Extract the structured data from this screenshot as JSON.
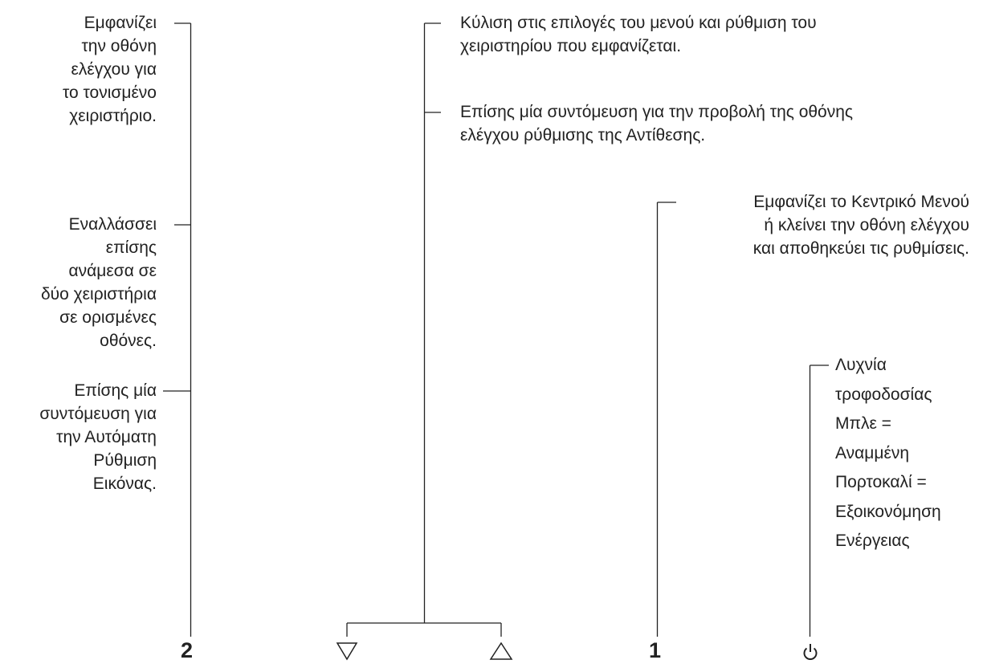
{
  "callouts": {
    "button2_show_control": [
      "Εμφανίζει",
      "την οθόνη",
      "ελέγχου για",
      "το τονισμένο",
      "χειριστήριο."
    ],
    "button2_toggle": [
      "Εναλλάσσει",
      "επίσης",
      "ανάμεσα σε",
      "δύο χειριστήρια",
      "σε ορισμένες",
      "οθόνες."
    ],
    "button2_shortcut": [
      "Επίσης μία",
      "συντόμευση για",
      "την Αυτόματη",
      "Ρύθμιση",
      "Εικόνας."
    ],
    "arrows_scroll": [
      "Κύλιση στις επιλογές του μενού και ρύθμιση του",
      "χειριστηρίου που εμφανίζεται."
    ],
    "arrows_shortcut": [
      "Επίσης μία συντόμευση για την προβολή της οθόνης",
      "ελέγχου ρύθμισης της Αντίθεσης."
    ],
    "button1_menu": [
      "Εμφανίζει το Κεντρικό Μενού",
      "ή κλείνει την οθόνη ελέγχου",
      "και αποθηκεύει τις ρυθμίσεις."
    ],
    "power_light": [
      "Λυχνία",
      "τροφοδοσίας",
      "Μπλε =",
      "Αναμμένη",
      "Πορτοκαλί =",
      "Εξοικονόμηση",
      "Ενέργειας"
    ]
  },
  "buttons": {
    "button2_label": "2",
    "down_icon": "down-triangle-icon",
    "up_icon": "up-triangle-icon",
    "button1_label": "1",
    "power_icon": "power-icon"
  },
  "colors": {
    "line": "#222222",
    "text": "#222222"
  }
}
